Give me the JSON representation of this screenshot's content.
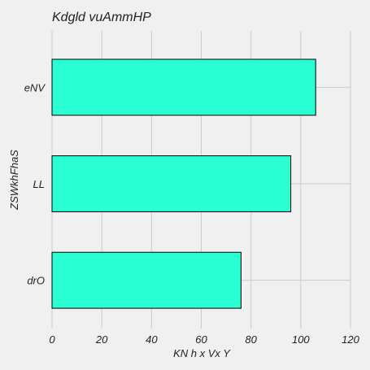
{
  "chart_data": {
    "type": "bar",
    "orientation": "horizontal",
    "title": "Kdgld vuAmmHP",
    "xlabel": "KN h x Vx Y",
    "ylabel": "ZSWkhFhaS",
    "categories": [
      "drO",
      "LL",
      "eNV"
    ],
    "values": [
      76,
      96,
      106
    ],
    "xlim": [
      0,
      120
    ],
    "xticks": [
      0,
      20,
      40,
      60,
      80,
      100,
      120
    ],
    "grid": true,
    "bar_color": "#2affd3",
    "bar_edge_color": "#000000",
    "grid_color": "#cbcbcb",
    "background": "#f0f0f0"
  }
}
